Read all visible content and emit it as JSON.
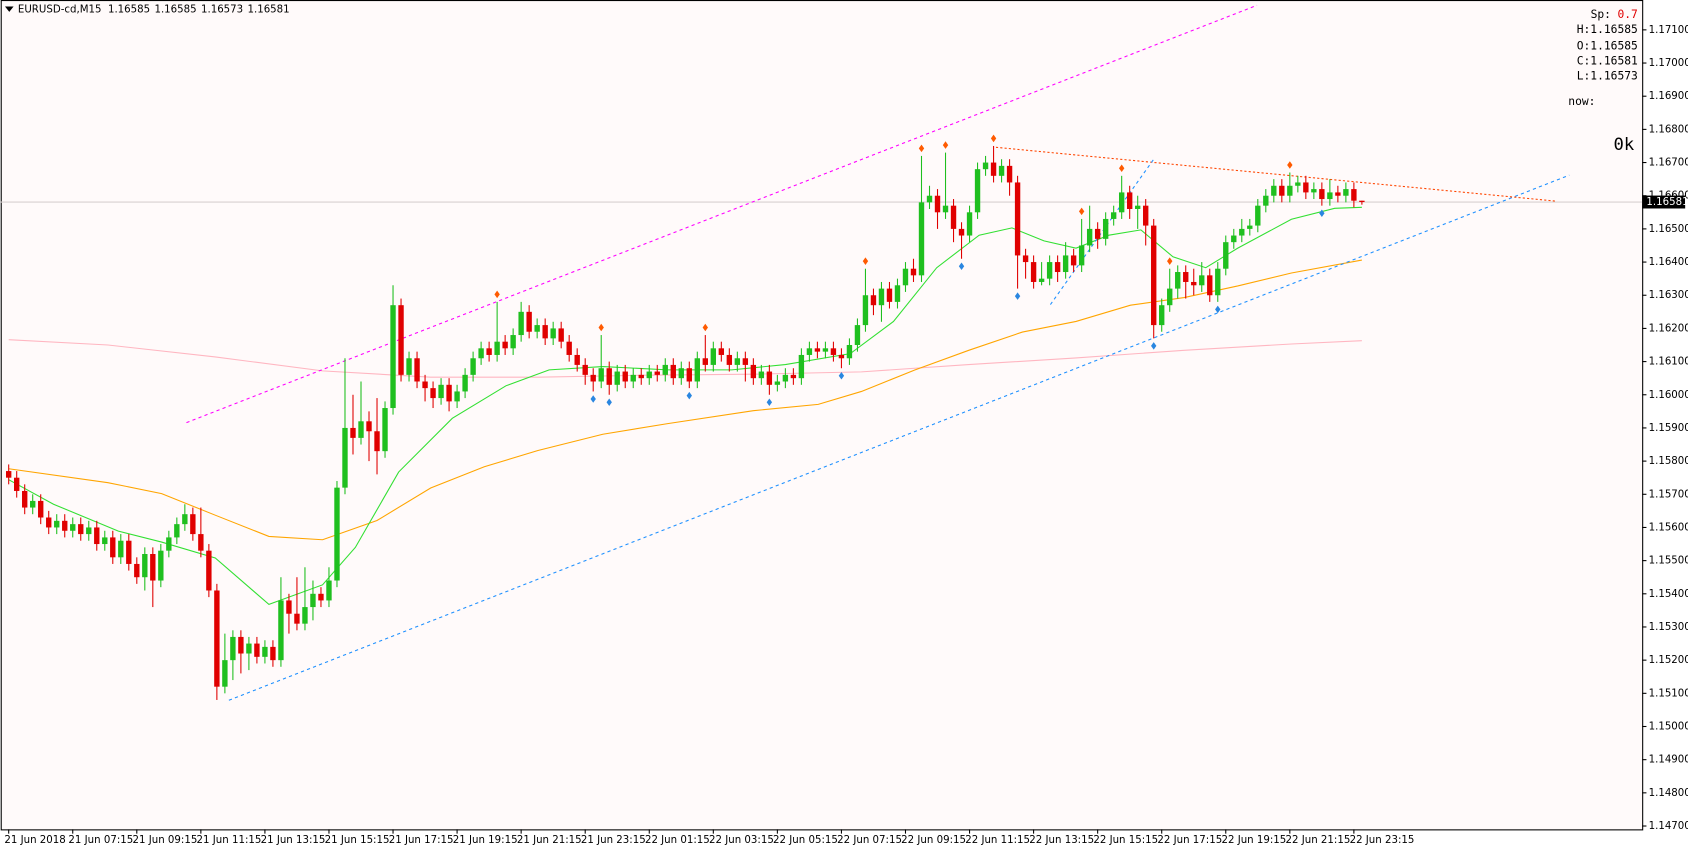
{
  "chart_data": {
    "type": "candlestick",
    "title": "EURUSD-cd,M15",
    "open": [
      1.1577,
      1.1575,
      1.1571,
      1.1566,
      1.1568,
      1.1563,
      1.156,
      1.1562,
      1.1559,
      1.1561,
      1.1558,
      1.156,
      1.1555,
      1.1557,
      1.1551,
      1.1556,
      1.1549,
      1.1545,
      1.1552,
      1.1544,
      1.1553,
      1.1557,
      1.1561,
      1.1564,
      1.1558,
      1.1553,
      1.1541,
      1.1512,
      1.152,
      1.1527,
      1.1522,
      1.1525,
      1.1521,
      1.1524,
      1.152,
      1.1538,
      1.1534,
      1.1531,
      1.1536,
      1.154,
      1.1538,
      1.1544,
      1.1572,
      1.159,
      1.1587,
      1.1592,
      1.1589,
      1.1583,
      1.1596,
      1.1627,
      1.1606,
      1.1611,
      1.1604,
      1.1602,
      1.1599,
      1.1603,
      1.1598,
      1.1601,
      1.1606,
      1.1611,
      1.1614,
      1.1612,
      1.1616,
      1.1614,
      1.1618,
      1.1625,
      1.1619,
      1.1621,
      1.1617,
      1.162,
      1.1616,
      1.1612,
      1.1609,
      1.1606,
      1.1604,
      1.1608,
      1.1603,
      1.1607,
      1.1604,
      1.1606,
      1.1605,
      1.1607,
      1.1606,
      1.1609,
      1.1605,
      1.1608,
      1.1604,
      1.1611,
      1.1609,
      1.1614,
      1.1612,
      1.1609,
      1.1611,
      1.1609,
      1.1605,
      1.1607,
      1.1603,
      1.1604,
      1.1606,
      1.1605,
      1.1612,
      1.1614,
      1.1613,
      1.1614,
      1.1612,
      1.1611,
      1.1615,
      1.1621,
      1.163,
      1.1627,
      1.1632,
      1.1628,
      1.1633,
      1.1638,
      1.1636,
      1.1658,
      1.166,
      1.1655,
      1.1657,
      1.165,
      1.1648,
      1.1655,
      1.1668,
      1.167,
      1.1666,
      1.1669,
      1.1664,
      1.1642,
      1.164,
      1.1634,
      1.1635,
      1.164,
      1.1637,
      1.1642,
      1.1639,
      1.1645,
      1.165,
      1.1647,
      1.1653,
      1.1655,
      1.1661,
      1.1656,
      1.1657,
      1.1651,
      1.1621,
      1.1627,
      1.1632,
      1.1637,
      1.1634,
      1.1633,
      1.1636,
      1.163,
      1.1638,
      1.1646,
      1.1648,
      1.165,
      1.1651,
      1.1657,
      1.166,
      1.1663,
      1.166,
      1.1663,
      1.1664,
      1.1661,
      1.1662,
      1.1659,
      1.1661,
      1.166,
      1.1662,
      1.16585
    ],
    "high": [
      1.1579,
      1.1577,
      1.1573,
      1.157,
      1.157,
      1.1565,
      1.1564,
      1.1564,
      1.1563,
      1.1563,
      1.1562,
      1.1562,
      1.1559,
      1.1559,
      1.1558,
      1.1558,
      1.1551,
      1.1554,
      1.1554,
      1.1555,
      1.1559,
      1.1563,
      1.1567,
      1.1566,
      1.1566,
      1.1555,
      1.1543,
      1.1528,
      1.1529,
      1.1529,
      1.1527,
      1.1527,
      1.1526,
      1.1526,
      1.1545,
      1.154,
      1.1545,
      1.1548,
      1.1544,
      1.1542,
      1.1548,
      1.1574,
      1.1611,
      1.16,
      1.1604,
      1.1595,
      1.1599,
      1.1598,
      1.1633,
      1.1629,
      1.1613,
      1.1613,
      1.1606,
      1.1604,
      1.1605,
      1.1605,
      1.1603,
      1.1608,
      1.1613,
      1.1616,
      1.1616,
      1.1628,
      1.1618,
      1.162,
      1.1628,
      1.1627,
      1.1623,
      1.1623,
      1.1622,
      1.1622,
      1.1618,
      1.1614,
      1.1611,
      1.1608,
      1.1618,
      1.161,
      1.1609,
      1.1609,
      1.1608,
      1.1608,
      1.1609,
      1.1609,
      1.1611,
      1.1611,
      1.161,
      1.161,
      1.1613,
      1.1618,
      1.1616,
      1.1616,
      1.1614,
      1.1613,
      1.1613,
      1.1611,
      1.1609,
      1.1609,
      1.1606,
      1.1608,
      1.1608,
      1.1614,
      1.1616,
      1.1616,
      1.1616,
      1.1616,
      1.1614,
      1.1617,
      1.1623,
      1.1638,
      1.1632,
      1.1634,
      1.1634,
      1.1635,
      1.164,
      1.1641,
      1.1672,
      1.1663,
      1.1662,
      1.1673,
      1.1659,
      1.1652,
      1.1657,
      1.167,
      1.1672,
      1.1675,
      1.1671,
      1.1671,
      1.1666,
      1.1644,
      1.1642,
      1.164,
      1.1642,
      1.1642,
      1.1646,
      1.1644,
      1.1653,
      1.1657,
      1.1652,
      1.1655,
      1.1657,
      1.1666,
      1.1663,
      1.166,
      1.1659,
      1.1653,
      1.1629,
      1.1638,
      1.1639,
      1.1639,
      1.1638,
      1.164,
      1.1638,
      1.164,
      1.1648,
      1.165,
      1.1653,
      1.1653,
      1.1659,
      1.1662,
      1.1665,
      1.1665,
      1.1667,
      1.1666,
      1.1666,
      1.1664,
      1.1664,
      1.1665,
      1.1663,
      1.1664,
      1.1664,
      1.16585
    ],
    "low": [
      1.1573,
      1.1569,
      1.1564,
      1.1564,
      1.1561,
      1.1558,
      1.1558,
      1.1557,
      1.1557,
      1.1556,
      1.1556,
      1.1553,
      1.1553,
      1.1549,
      1.1549,
      1.1547,
      1.1543,
      1.1541,
      1.1536,
      1.1542,
      1.1551,
      1.1555,
      1.1559,
      1.1556,
      1.1551,
      1.1539,
      1.1508,
      1.151,
      1.1514,
      1.1516,
      1.1517,
      1.1519,
      1.1519,
      1.1518,
      1.1518,
      1.1528,
      1.1529,
      1.1529,
      1.1532,
      1.1536,
      1.1536,
      1.1542,
      1.157,
      1.1582,
      1.1585,
      1.158,
      1.1576,
      1.1581,
      1.1594,
      1.1604,
      1.1604,
      1.1602,
      1.1598,
      1.1596,
      1.1597,
      1.1595,
      1.1596,
      1.1599,
      1.1604,
      1.1609,
      1.161,
      1.161,
      1.1612,
      1.1612,
      1.1616,
      1.1617,
      1.1617,
      1.1615,
      1.1615,
      1.1614,
      1.161,
      1.1607,
      1.1603,
      1.1601,
      1.1602,
      1.16,
      1.1601,
      1.1602,
      1.1602,
      1.1603,
      1.1603,
      1.1604,
      1.1604,
      1.1603,
      1.1603,
      1.1602,
      1.1602,
      1.1607,
      1.1607,
      1.161,
      1.1607,
      1.1607,
      1.1604,
      1.1603,
      1.1603,
      1.16,
      1.1601,
      1.1602,
      1.1603,
      1.1603,
      1.161,
      1.1611,
      1.1611,
      1.161,
      1.1608,
      1.1609,
      1.1613,
      1.1619,
      1.1624,
      1.1622,
      1.1626,
      1.1626,
      1.1631,
      1.1634,
      1.1634,
      1.1656,
      1.165,
      1.1653,
      1.1646,
      1.1641,
      1.1646,
      1.1653,
      1.1666,
      1.1664,
      1.1664,
      1.166,
      1.1632,
      1.1635,
      1.1632,
      1.1633,
      1.1633,
      1.1634,
      1.1635,
      1.1637,
      1.1637,
      1.1643,
      1.1644,
      1.1645,
      1.1651,
      1.1653,
      1.1653,
      1.165,
      1.1645,
      1.1617,
      1.1619,
      1.1625,
      1.1629,
      1.1629,
      1.163,
      1.1631,
      1.1628,
      1.1628,
      1.1636,
      1.1644,
      1.1646,
      1.1648,
      1.1649,
      1.1655,
      1.1658,
      1.1658,
      1.1658,
      1.1661,
      1.1659,
      1.1659,
      1.1657,
      1.1657,
      1.1658,
      1.1658,
      1.16565,
      1.16573
    ],
    "close": [
      1.1575,
      1.1571,
      1.1566,
      1.1568,
      1.1563,
      1.156,
      1.1562,
      1.1559,
      1.1561,
      1.1558,
      1.156,
      1.1555,
      1.1557,
      1.1551,
      1.1556,
      1.1549,
      1.1545,
      1.1552,
      1.1544,
      1.1553,
      1.1557,
      1.1561,
      1.1564,
      1.1558,
      1.1553,
      1.1541,
      1.1512,
      1.152,
      1.1527,
      1.1522,
      1.1525,
      1.1521,
      1.1524,
      1.152,
      1.1538,
      1.1534,
      1.1531,
      1.1536,
      1.154,
      1.1538,
      1.1544,
      1.1572,
      1.159,
      1.1587,
      1.1592,
      1.1589,
      1.1583,
      1.1596,
      1.1627,
      1.1606,
      1.1611,
      1.1604,
      1.1602,
      1.1599,
      1.1603,
      1.1598,
      1.1601,
      1.1606,
      1.1611,
      1.1614,
      1.1612,
      1.1616,
      1.1614,
      1.1618,
      1.1625,
      1.1619,
      1.1621,
      1.1617,
      1.162,
      1.1616,
      1.1612,
      1.1609,
      1.1606,
      1.1604,
      1.1608,
      1.1603,
      1.1607,
      1.1604,
      1.1606,
      1.1605,
      1.1607,
      1.1606,
      1.1609,
      1.1605,
      1.1608,
      1.1604,
      1.1611,
      1.1609,
      1.1614,
      1.1612,
      1.1609,
      1.1611,
      1.1609,
      1.1605,
      1.1607,
      1.1603,
      1.1604,
      1.1606,
      1.1605,
      1.1612,
      1.1614,
      1.1613,
      1.1614,
      1.1612,
      1.1611,
      1.1615,
      1.1621,
      1.163,
      1.1627,
      1.1632,
      1.1628,
      1.1633,
      1.1638,
      1.1636,
      1.1658,
      1.166,
      1.1655,
      1.1657,
      1.165,
      1.1648,
      1.1655,
      1.1668,
      1.167,
      1.1666,
      1.1669,
      1.1664,
      1.1642,
      1.164,
      1.1634,
      1.1635,
      1.164,
      1.1637,
      1.1642,
      1.1639,
      1.1645,
      1.165,
      1.1647,
      1.1653,
      1.1655,
      1.1661,
      1.1656,
      1.1657,
      1.1651,
      1.1621,
      1.1627,
      1.1632,
      1.1637,
      1.1634,
      1.1633,
      1.1636,
      1.163,
      1.1638,
      1.1646,
      1.1648,
      1.165,
      1.1651,
      1.1657,
      1.166,
      1.1663,
      1.166,
      1.1663,
      1.1664,
      1.1661,
      1.1662,
      1.1659,
      1.1661,
      1.166,
      1.1662,
      1.16585,
      1.16581
    ],
    "up_color": "#1fbf1f",
    "down_color": "#e00000",
    "xlim": [
      -1,
      204
    ],
    "ylim": [
      1.1469,
      1.1719
    ],
    "xticks": [
      {
        "value": 0,
        "label": "21 Jun 2018"
      },
      {
        "value": 8,
        "label": "21 Jun 07:15"
      },
      {
        "value": 16,
        "label": "21 Jun 09:15"
      },
      {
        "value": 24,
        "label": "21 Jun 11:15"
      },
      {
        "value": 32,
        "label": "21 Jun 13:15"
      },
      {
        "value": 40,
        "label": "21 Jun 15:15"
      },
      {
        "value": 48,
        "label": "21 Jun 17:15"
      },
      {
        "value": 56,
        "label": "21 Jun 19:15"
      },
      {
        "value": 64,
        "label": "21 Jun 21:15"
      },
      {
        "value": 72,
        "label": "21 Jun 23:15"
      },
      {
        "value": 80,
        "label": "22 Jun 01:15"
      },
      {
        "value": 88,
        "label": "22 Jun 03:15"
      },
      {
        "value": 96,
        "label": "22 Jun 05:15"
      },
      {
        "value": 104,
        "label": "22 Jun 07:15"
      },
      {
        "value": 112,
        "label": "22 Jun 09:15"
      },
      {
        "value": 120,
        "label": "22 Jun 11:15"
      },
      {
        "value": 128,
        "label": "22 Jun 13:15"
      },
      {
        "value": 136,
        "label": "22 Jun 15:15"
      },
      {
        "value": 144,
        "label": "22 Jun 17:15"
      },
      {
        "value": 152,
        "label": "22 Jun 19:15"
      },
      {
        "value": 160,
        "label": "22 Jun 21:15"
      },
      {
        "value": 168,
        "label": "22 Jun 23:15"
      }
    ],
    "yticks": [
      {
        "value": 1.171,
        "label": "1.17100"
      },
      {
        "value": 1.17,
        "label": "1.17000"
      },
      {
        "value": 1.169,
        "label": "1.16900"
      },
      {
        "value": 1.168,
        "label": "1.16800"
      },
      {
        "value": 1.167,
        "label": "1.16700"
      },
      {
        "value": 1.166,
        "label": "1.16600"
      },
      {
        "value": 1.165,
        "label": "1.16500"
      },
      {
        "value": 1.164,
        "label": "1.16400"
      },
      {
        "value": 1.163,
        "label": "1.16300"
      },
      {
        "value": 1.162,
        "label": "1.16200"
      },
      {
        "value": 1.161,
        "label": "1.16100"
      },
      {
        "value": 1.16,
        "label": "1.16000"
      },
      {
        "value": 1.159,
        "label": "1.15900"
      },
      {
        "value": 1.158,
        "label": "1.15800"
      },
      {
        "value": 1.157,
        "label": "1.15700"
      },
      {
        "value": 1.156,
        "label": "1.15600"
      },
      {
        "value": 1.155,
        "label": "1.15500"
      },
      {
        "value": 1.154,
        "label": "1.15400"
      },
      {
        "value": 1.153,
        "label": "1.15300"
      },
      {
        "value": 1.152,
        "label": "1.15200"
      },
      {
        "value": 1.151,
        "label": "1.15100"
      },
      {
        "value": 1.15,
        "label": "1.15000"
      },
      {
        "value": 1.149,
        "label": "1.14900"
      },
      {
        "value": 1.148,
        "label": "1.14800"
      },
      {
        "value": 1.147,
        "label": "1.14700"
      }
    ],
    "lines": [
      {
        "color": "#ffb6c1",
        "x": [
          0,
          12.4,
          25.8,
          39.2,
          52.7,
          66.1,
          79.6,
          93.0,
          106.5,
          119.9,
          133.3,
          146.8,
          160.2,
          169
        ],
        "values": [
          1.16166,
          1.1615,
          1.16114,
          1.16072,
          1.16053,
          1.16053,
          1.16059,
          1.16062,
          1.16069,
          1.16091,
          1.16111,
          1.16134,
          1.16153,
          1.16163
        ]
      },
      {
        "color": "#ffa500",
        "x": [
          0,
          12.4,
          19.1,
          25.8,
          32.5,
          39.2,
          46.0,
          52.7,
          59.4,
          66.1,
          74.2,
          82.3,
          93.0,
          101.1,
          106.5,
          113.2,
          119.9,
          126.6,
          133.3,
          140.1,
          146.8,
          153.5,
          160.2,
          169
        ],
        "values": [
          1.15777,
          1.15735,
          1.15702,
          1.15637,
          1.15573,
          1.15563,
          1.15621,
          1.15719,
          1.15783,
          1.15832,
          1.15881,
          1.15913,
          1.15952,
          1.15971,
          1.1601,
          1.16075,
          1.16134,
          1.16189,
          1.16221,
          1.1627,
          1.16293,
          1.16328,
          1.16367,
          1.16406
        ]
      },
      {
        "color": "#32e032",
        "x": [
          0,
          5.6,
          13.7,
          19.1,
          25.8,
          32.5,
          39.2,
          43.3,
          48.7,
          55.4,
          62.1,
          67.5,
          74.2,
          82.3,
          90.3,
          97.0,
          105.1,
          110.5,
          115.9,
          121.2,
          125.3,
          129.3,
          133.3,
          137.4,
          141.4,
          145.4,
          149.5,
          153.5,
          160.2,
          165.6,
          169
        ],
        "values": [
          1.15744,
          1.1567,
          1.15589,
          1.15556,
          1.15508,
          1.15368,
          1.15427,
          1.1554,
          1.15767,
          1.15929,
          1.16027,
          1.16075,
          1.16085,
          1.16075,
          1.16075,
          1.16091,
          1.16124,
          1.16221,
          1.16383,
          1.16481,
          1.16503,
          1.16464,
          1.16442,
          1.16481,
          1.16497,
          1.16416,
          1.16383,
          1.16442,
          1.16529,
          1.16562,
          1.16565
        ]
      }
    ],
    "trendlines": [
      {
        "color": "#ff00ff",
        "dash": "3 3",
        "x": [
          22.2,
          155.9
        ],
        "values": [
          1.15916,
          1.17174
        ]
      },
      {
        "color": "#1e90ff",
        "dash": "3 3",
        "x": [
          27.5,
          194.9
        ],
        "values": [
          1.15079,
          1.16662
        ]
      },
      {
        "color": "#ff4500",
        "dash": "2 2",
        "x": [
          123.3,
          193.1
        ],
        "values": [
          1.16746,
          1.16584
        ]
      },
      {
        "color": "#1e90ff",
        "dash": "3 3",
        "x": [
          130.1,
          143.0
        ],
        "values": [
          1.16272,
          1.1671
        ]
      }
    ],
    "fractals_up": {
      "color": "#ff5a00",
      "x": [
        61,
        74,
        87,
        107,
        114,
        117,
        123,
        134,
        139,
        145,
        160
      ]
    },
    "fractals_down": {
      "color": "#2a86e0",
      "x": [
        73,
        75,
        85,
        95,
        104,
        119,
        126,
        143,
        151,
        164
      ]
    },
    "current_price_line": true,
    "info": {
      "spread_label": "Sp:",
      "spread": 0.7,
      "high_label": "H:",
      "open_label": "O:",
      "close_label": "C:",
      "low_label": "L:",
      "now_label": "now:",
      "status": "0k"
    }
  }
}
